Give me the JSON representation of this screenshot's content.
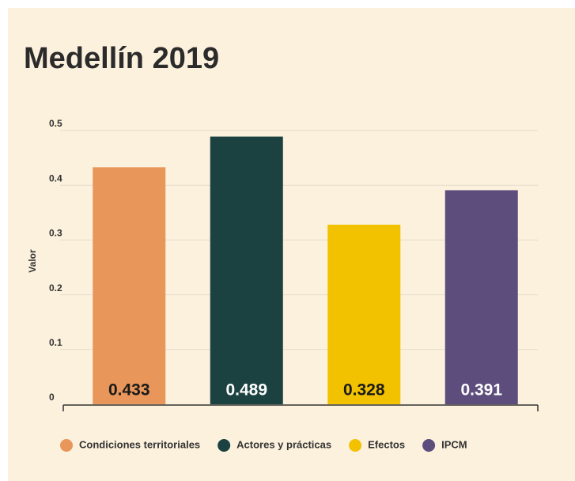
{
  "chart_data": {
    "type": "bar",
    "title": "Medellín 2019",
    "y_label": "Valor",
    "categories": [
      "Condiciones territoriales",
      "Actores y prácticas",
      "Efectos",
      "IPCM"
    ],
    "values": [
      0.433,
      0.489,
      0.328,
      0.391
    ],
    "colors": [
      "#e8965a",
      "#1b4241",
      "#f2c200",
      "#5c4d7d"
    ],
    "ylim": [
      0,
      0.5
    ],
    "yticks": [
      0,
      0.1,
      0.2,
      0.3,
      0.4,
      0.5
    ],
    "grid": true,
    "legend": "bottom"
  }
}
